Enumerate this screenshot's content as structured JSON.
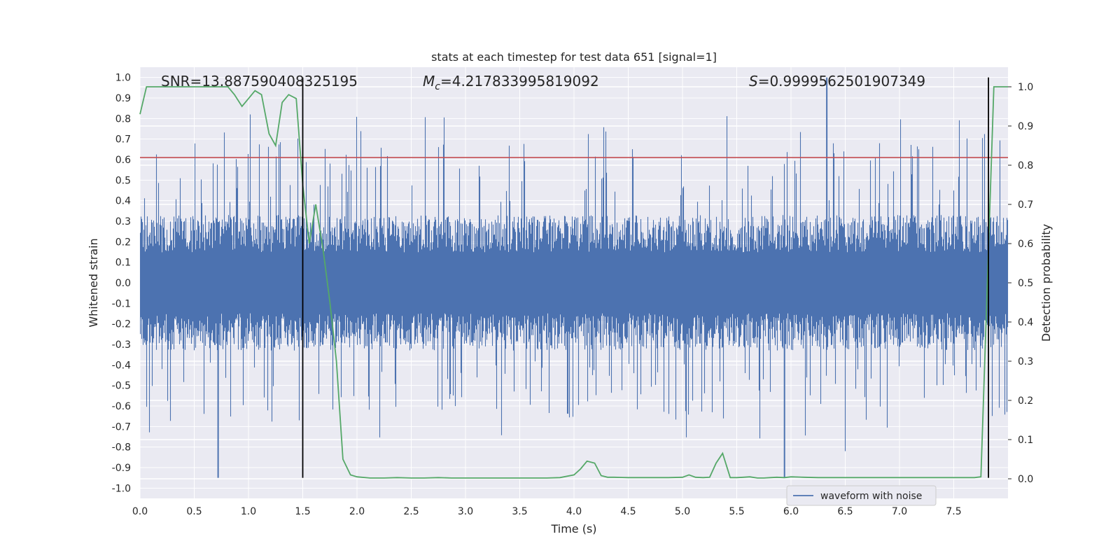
{
  "chart_data": {
    "type": "line",
    "title": "stats at each timestep for test data 651 [signal=1]",
    "xlabel": "Time (s)",
    "ylabel": "Whitened strain",
    "y2label": "Detection probability",
    "xlim": [
      0.0,
      8.0
    ],
    "ylim": [
      -1.05,
      1.05
    ],
    "y2lim": [
      -0.05,
      1.05
    ],
    "x_ticks": [
      "0.0",
      "0.5",
      "1.0",
      "1.5",
      "2.0",
      "2.5",
      "3.0",
      "3.5",
      "4.0",
      "4.5",
      "5.0",
      "5.5",
      "6.0",
      "6.5",
      "7.0",
      "7.5"
    ],
    "y_ticks": [
      "1.0",
      "0.9",
      "0.8",
      "0.7",
      "0.6",
      "0.5",
      "0.4",
      "0.3",
      "0.2",
      "0.1",
      "0.0",
      "-0.1",
      "-0.2",
      "-0.3",
      "-0.4",
      "-0.5",
      "-0.6",
      "-0.7",
      "-0.8",
      "-0.9",
      "-1.0"
    ],
    "y2_ticks": [
      "1.0",
      "0.9",
      "0.8",
      "0.7",
      "0.6",
      "0.5",
      "0.4",
      "0.3",
      "0.2",
      "0.1",
      "0.0"
    ],
    "grid": true,
    "legend_position": "lower-right",
    "annotations": {
      "snr": "SNR=13.887590408325195",
      "mc_symbol": "M",
      "mc_sub": "c",
      "mc_value": "=4.217833995819092",
      "s_symbol": "S",
      "s_value": "=0.9999562501907349"
    },
    "series": [
      {
        "name": "waveform with noise",
        "color": "#4c72b0",
        "envelope_abs": 0.33,
        "spike_max": 1.0,
        "spike_min": -0.95
      },
      {
        "color": "#55a868",
        "axis": "right",
        "x": [
          0.0,
          0.06,
          0.12,
          0.19,
          0.25,
          0.31,
          0.37,
          0.44,
          0.5,
          0.56,
          0.62,
          0.69,
          0.75,
          0.81,
          0.87,
          0.94,
          1.0,
          1.06,
          1.12,
          1.19,
          1.25,
          1.31,
          1.37,
          1.44,
          1.5,
          1.56,
          1.62,
          1.69,
          1.75,
          1.81,
          1.87,
          1.94,
          2.0,
          2.12,
          2.25,
          2.37,
          2.5,
          2.62,
          2.75,
          2.87,
          3.0,
          3.12,
          3.25,
          3.37,
          3.5,
          3.62,
          3.75,
          3.87,
          4.0,
          4.06,
          4.12,
          4.19,
          4.25,
          4.31,
          4.37,
          4.5,
          4.62,
          4.75,
          4.87,
          5.0,
          5.06,
          5.12,
          5.19,
          5.25,
          5.31,
          5.37,
          5.44,
          5.5,
          5.56,
          5.62,
          5.69,
          5.75,
          5.81,
          5.87,
          5.94,
          6.0,
          6.12,
          6.25,
          6.5,
          6.75,
          7.0,
          7.25,
          7.5,
          7.62,
          7.69,
          7.75,
          7.81,
          7.87,
          7.94,
          8.0
        ],
        "y": [
          0.93,
          1.0,
          1.0,
          1.0,
          1.0,
          1.0,
          1.0,
          1.0,
          1.0,
          1.0,
          1.0,
          1.0,
          1.0,
          1.0,
          0.98,
          0.95,
          0.97,
          0.99,
          0.98,
          0.88,
          0.85,
          0.96,
          0.98,
          0.97,
          0.75,
          0.6,
          0.7,
          0.58,
          0.45,
          0.3,
          0.05,
          0.01,
          0.005,
          0.002,
          0.002,
          0.003,
          0.002,
          0.002,
          0.003,
          0.002,
          0.002,
          0.002,
          0.002,
          0.002,
          0.002,
          0.002,
          0.002,
          0.003,
          0.01,
          0.025,
          0.045,
          0.04,
          0.008,
          0.004,
          0.004,
          0.003,
          0.003,
          0.003,
          0.003,
          0.004,
          0.01,
          0.004,
          0.003,
          0.004,
          0.04,
          0.065,
          0.003,
          0.003,
          0.004,
          0.005,
          0.002,
          0.002,
          0.003,
          0.004,
          0.003,
          0.005,
          0.004,
          0.003,
          0.003,
          0.003,
          0.003,
          0.003,
          0.003,
          0.003,
          0.003,
          0.005,
          0.5,
          1.0,
          1.0,
          1.0
        ]
      }
    ],
    "threshold": {
      "y": 0.61,
      "color": "#c44e52"
    },
    "event_lines": {
      "x": [
        1.5,
        7.82
      ],
      "color": "#000000"
    }
  }
}
